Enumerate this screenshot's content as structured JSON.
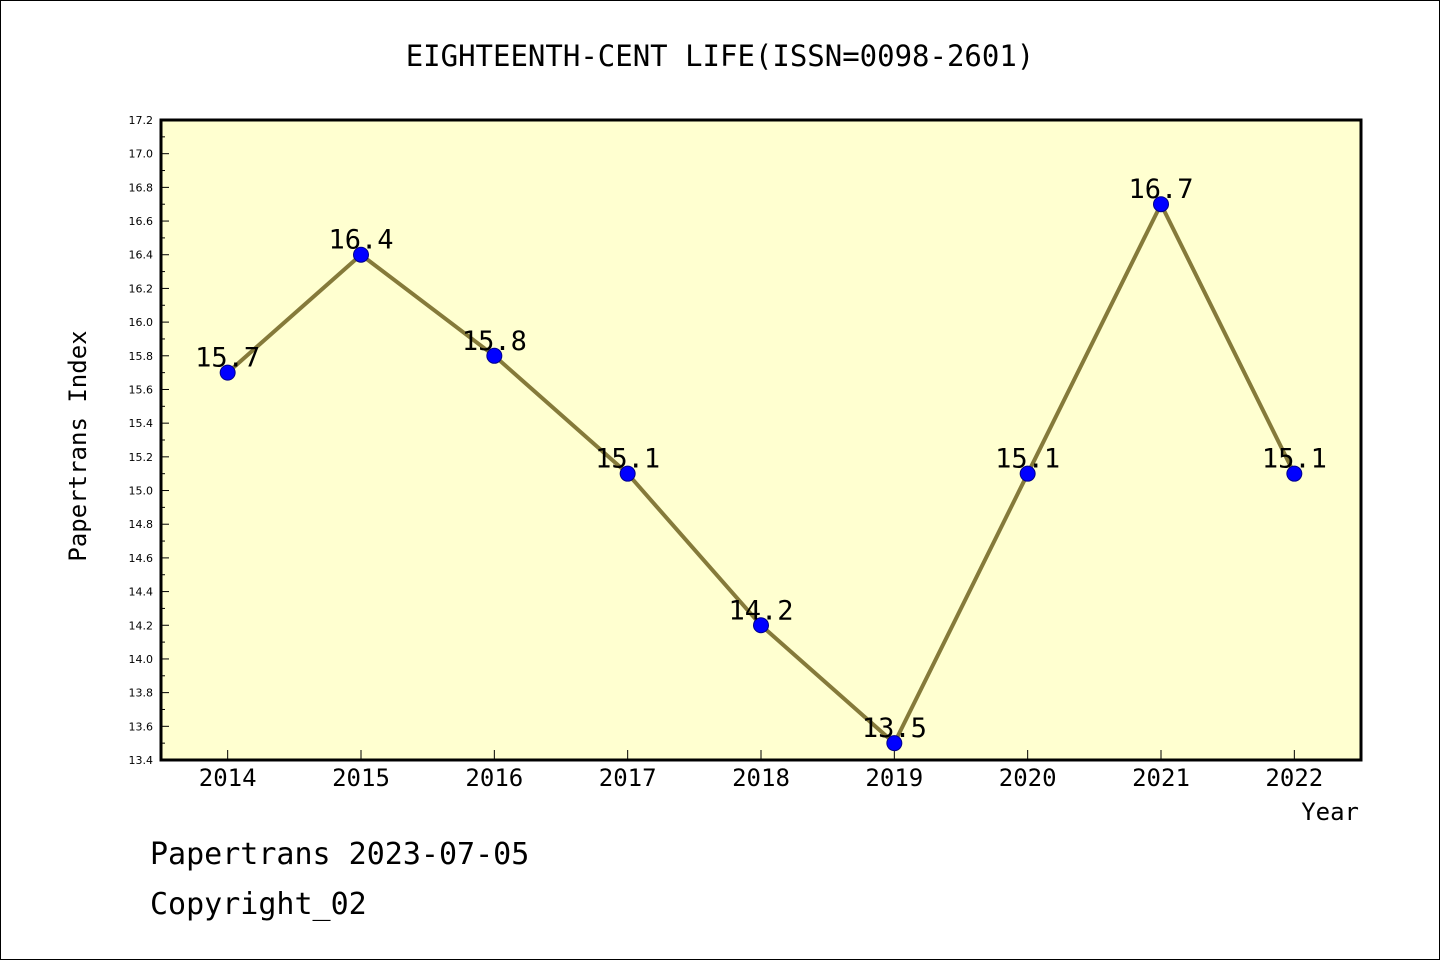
{
  "chart_data": {
    "type": "line",
    "title": "EIGHTEENTH-CENT LIFE(ISSN=0098-2601)",
    "xlabel": "Year",
    "ylabel": "Papertrans Index",
    "categories": [
      "2014",
      "2015",
      "2016",
      "2017",
      "2018",
      "2019",
      "2020",
      "2021",
      "2022"
    ],
    "values": [
      15.7,
      16.4,
      15.8,
      15.1,
      14.2,
      13.5,
      15.1,
      16.7,
      15.1
    ],
    "data_labels": [
      "15.7",
      "16.4",
      "15.8",
      "15.1",
      "14.2",
      "13.5",
      "15.1",
      "16.7",
      "15.1"
    ],
    "ylim": [
      13.4,
      17.2
    ],
    "y_ticks": [
      "13.4",
      "13.6",
      "13.8",
      "14.0",
      "14.2",
      "14.4",
      "14.6",
      "14.8",
      "15.0",
      "15.2",
      "15.4",
      "15.6",
      "15.8",
      "16.0",
      "16.2",
      "16.4",
      "16.6",
      "16.8",
      "17.0",
      "17.2"
    ],
    "grid": false,
    "legend": "none",
    "colors": {
      "plot_background": "#ffffd0",
      "line": "#857a3a",
      "marker": "#0000ff"
    }
  },
  "footer": {
    "line1": "Papertrans 2023-07-05",
    "line2": "Copyright_02"
  }
}
